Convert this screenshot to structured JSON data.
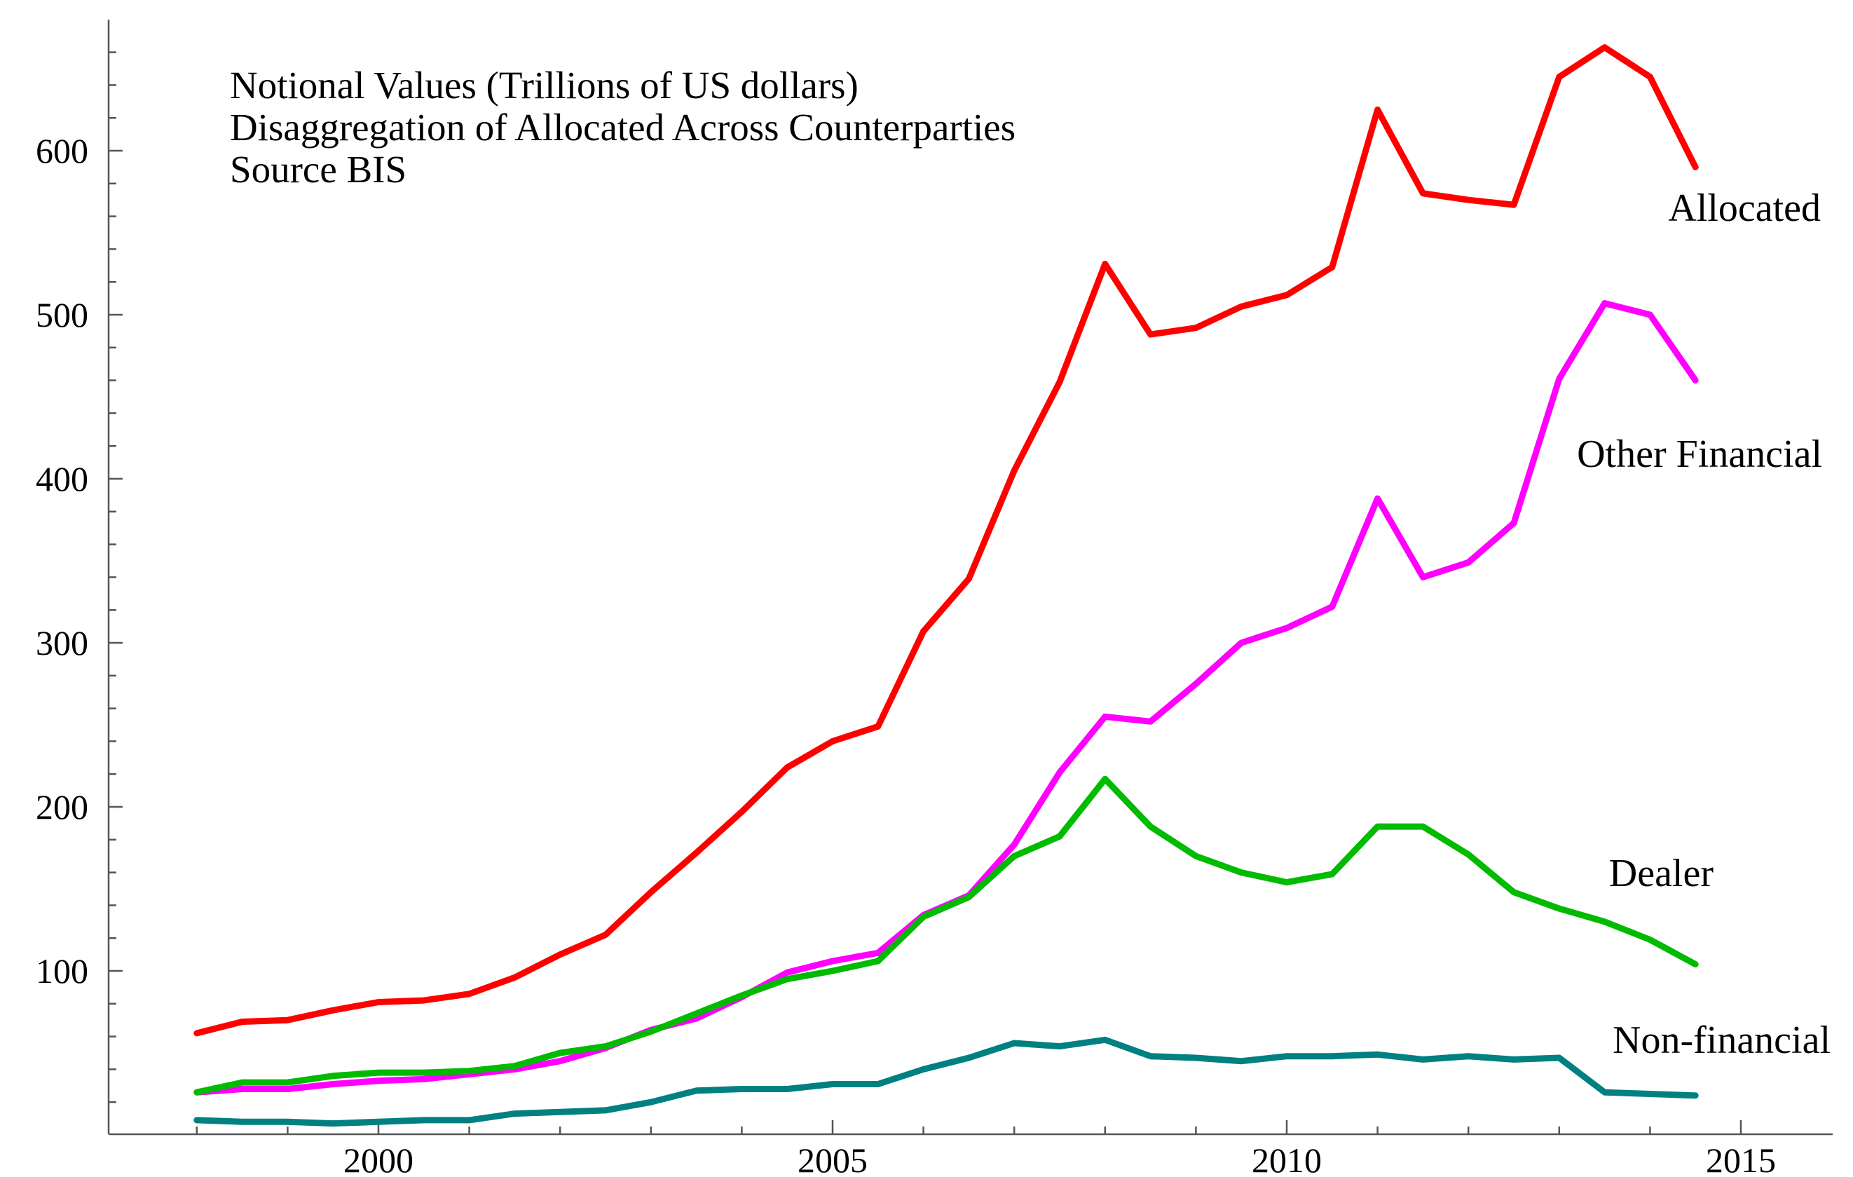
{
  "chart_data": {
    "type": "line",
    "title": [
      "Notional Values (Trillions of US dollars)",
      "Disaggregation of Allocated Across Counterparties",
      "Source BIS"
    ],
    "xlabel": "",
    "ylabel": "",
    "xlim": [
      1996.5,
      2016.0
    ],
    "ylim": [
      0,
      680
    ],
    "xticks": [
      2000,
      2005,
      2010,
      2015
    ],
    "yticks": [
      100,
      200,
      300,
      400,
      500,
      600
    ],
    "grid": false,
    "x": [
      1998.0,
      1998.5,
      1999.0,
      1999.5,
      2000.0,
      2000.5,
      2001.0,
      2001.5,
      2002.0,
      2002.5,
      2003.0,
      2003.5,
      2004.0,
      2004.5,
      2005.0,
      2005.5,
      2006.0,
      2006.5,
      2007.0,
      2007.5,
      2008.0,
      2008.5,
      2009.0,
      2009.5,
      2010.0,
      2010.5,
      2011.0,
      2011.5,
      2012.0,
      2012.5,
      2013.0,
      2013.5,
      2014.0,
      2014.5
    ],
    "series": [
      {
        "name": "Allocated",
        "color": "#ff0000",
        "values": [
          62,
          69,
          70,
          76,
          81,
          82,
          86,
          96,
          110,
          122,
          148,
          172,
          197,
          224,
          240,
          249,
          307,
          339,
          405,
          459,
          531,
          488,
          492,
          505,
          512,
          529,
          625,
          574,
          570,
          567,
          645,
          663,
          645,
          590
        ]
      },
      {
        "name": "Other Financial",
        "color": "#ff00ff",
        "values": [
          26,
          28,
          28,
          31,
          33,
          34,
          37,
          40,
          45,
          53,
          64,
          71,
          84,
          99,
          106,
          111,
          134,
          146,
          177,
          221,
          255,
          252,
          275,
          300,
          309,
          322,
          388,
          340,
          349,
          373,
          461,
          507,
          500,
          460
        ]
      },
      {
        "name": "Dealer",
        "color": "#00bb00",
        "values": [
          26,
          32,
          32,
          36,
          38,
          38,
          39,
          42,
          50,
          54,
          63,
          74,
          85,
          95,
          100,
          106,
          133,
          145,
          170,
          182,
          217,
          188,
          170,
          160,
          154,
          159,
          188,
          188,
          171,
          148,
          138,
          130,
          119,
          104
        ]
      },
      {
        "name": "Non-financial",
        "color": "#008080",
        "values": [
          9,
          8,
          8,
          7,
          8,
          9,
          9,
          13,
          14,
          15,
          20,
          27,
          28,
          28,
          31,
          31,
          40,
          47,
          56,
          54,
          58,
          48,
          47,
          45,
          48,
          48,
          49,
          46,
          48,
          46,
          47,
          26,
          25,
          24
        ]
      }
    ],
    "annotations": [
      {
        "text": "Allocated",
        "series": "Allocated"
      },
      {
        "text": "Other Financial",
        "series": "Other Financial"
      },
      {
        "text": "Dealer",
        "series": "Dealer"
      },
      {
        "text": "Non-financial",
        "series": "Non-financial"
      }
    ]
  }
}
